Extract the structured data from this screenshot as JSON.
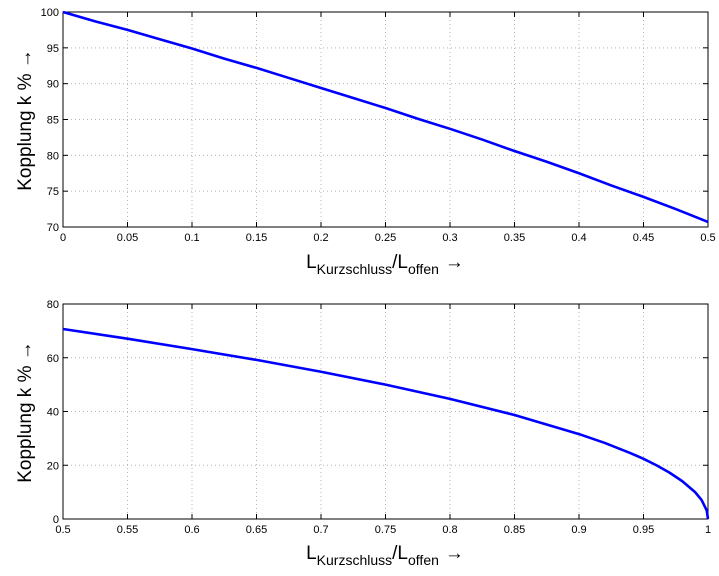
{
  "chart_data": [
    {
      "type": "line",
      "x_label_parts": {
        "main": "L",
        "sub1": "Kurzschluss",
        "sep": "/L",
        "sub2": "offen",
        "arrow": "→"
      },
      "ylabel": "Kopplung k % →",
      "xlim": [
        0,
        0.5
      ],
      "ylim": [
        70,
        100
      ],
      "x_ticks": [
        "0",
        "0.05",
        "0.1",
        "0.15",
        "0.2",
        "0.25",
        "0.3",
        "0.35",
        "0.4",
        "0.45",
        "0.5"
      ],
      "y_ticks": [
        "70",
        "75",
        "80",
        "85",
        "90",
        "95",
        "100"
      ],
      "grid": true,
      "series": [
        {
          "color": "#0000ff",
          "x": [
            0,
            0.025,
            0.05,
            0.075,
            0.1,
            0.125,
            0.15,
            0.175,
            0.2,
            0.225,
            0.25,
            0.275,
            0.3,
            0.325,
            0.35,
            0.375,
            0.4,
            0.425,
            0.45,
            0.475,
            0.5
          ],
          "y": [
            100,
            98.7,
            97.5,
            96.2,
            94.9,
            93.5,
            92.2,
            90.8,
            89.4,
            88.0,
            86.6,
            85.1,
            83.7,
            82.2,
            80.6,
            79.1,
            77.5,
            75.8,
            74.2,
            72.5,
            70.7
          ]
        }
      ]
    },
    {
      "type": "line",
      "x_label_parts": {
        "main": "L",
        "sub1": "Kurzschluss",
        "sep": "/L",
        "sub2": "offen",
        "arrow": "→"
      },
      "ylabel": "Kopplung k % →",
      "xlim": [
        0.5,
        1
      ],
      "ylim": [
        0,
        80
      ],
      "x_ticks": [
        "0.5",
        "0.55",
        "0.6",
        "0.65",
        "0.7",
        "0.75",
        "0.8",
        "0.85",
        "0.9",
        "0.95",
        "1"
      ],
      "y_ticks": [
        "0",
        "20",
        "40",
        "60",
        "80"
      ],
      "grid": true,
      "series": [
        {
          "color": "#0000ff",
          "x": [
            0.5,
            0.55,
            0.6,
            0.65,
            0.7,
            0.75,
            0.8,
            0.85,
            0.9,
            0.92,
            0.94,
            0.95,
            0.96,
            0.97,
            0.98,
            0.99,
            0.995,
            0.999,
            1.0
          ],
          "y": [
            70.7,
            67.1,
            63.2,
            59.2,
            54.8,
            50.0,
            44.7,
            38.7,
            31.6,
            28.3,
            24.5,
            22.4,
            20.0,
            17.3,
            14.1,
            10.0,
            7.1,
            3.2,
            0
          ]
        }
      ]
    }
  ]
}
